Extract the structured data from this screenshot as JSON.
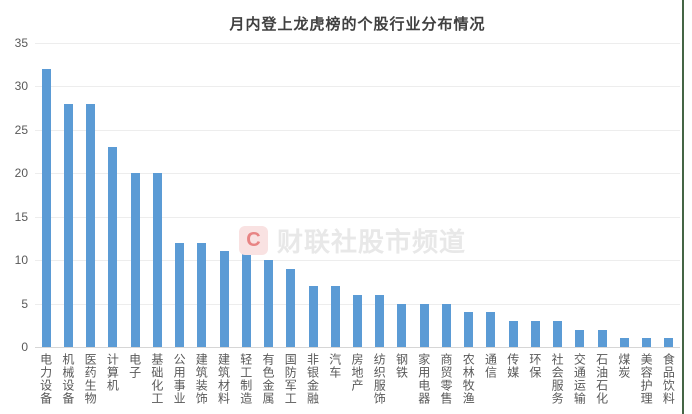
{
  "title": "月内登上龙虎榜的个股行业分布情况",
  "watermark": {
    "logo_letter": "C",
    "text": "财联社股市频道"
  },
  "colors": {
    "bar": "#5b9bd5",
    "title_text": "#404040",
    "axis_text": "#595959",
    "gridline": "#ededed",
    "axis_line": "#d6d6d6",
    "watermark_text": "#e8e8e8",
    "watermark_logo_bg": "#f9e2e2",
    "watermark_logo_letter": "#e88484",
    "right_border_green": "#456545"
  },
  "chart_data": {
    "type": "bar",
    "title": "月内登上龙虎榜的个股行业分布情况",
    "xlabel": "",
    "ylabel": "",
    "ylim": [
      0,
      35
    ],
    "yticks": [
      0,
      5,
      10,
      15,
      20,
      25,
      30,
      35
    ],
    "grid": true,
    "legend": false,
    "categories": [
      "电力设备",
      "机械设备",
      "医药生物",
      "计算机",
      "电子",
      "基础化工",
      "公用事业",
      "建筑装饰",
      "建筑材料",
      "轻工制造",
      "有色金属",
      "国防军工",
      "非银金融",
      "汽车",
      "房地产",
      "纺织服饰",
      "钢铁",
      "家用电器",
      "商贸零售",
      "农林牧渔",
      "通信",
      "传媒",
      "环保",
      "社会服务",
      "交通运输",
      "石油石化",
      "煤炭",
      "美容护理",
      "食品饮料"
    ],
    "values": [
      32,
      28,
      28,
      23,
      20,
      20,
      12,
      12,
      11,
      11,
      10,
      9,
      7,
      7,
      6,
      6,
      5,
      5,
      5,
      4,
      4,
      3,
      3,
      3,
      2,
      2,
      1,
      1,
      1
    ]
  }
}
